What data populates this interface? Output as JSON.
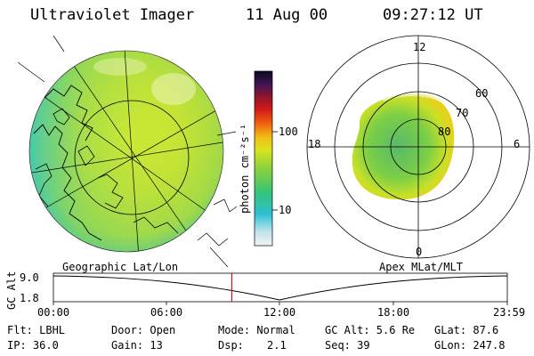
{
  "header": {
    "instrument": "Ultraviolet Imager",
    "date": "11 Aug 00",
    "time": "09:27:12 UT"
  },
  "colorbar": {
    "unit_label": "photon cm⁻²s⁻¹",
    "ticks": [
      "100",
      "10"
    ]
  },
  "polar_plot": {
    "mlt_labels": [
      "12",
      "18",
      "6",
      "0"
    ],
    "mlat_labels": [
      "60",
      "70",
      "80"
    ]
  },
  "altitude_strip": {
    "left_label": "Geographic Lat/Lon",
    "right_label": "Apex MLat/MLT",
    "axis_label": "GC Alt",
    "y_ticks": [
      "9.0",
      "1.8"
    ],
    "time_ticks": [
      "00:00",
      "06:00",
      "12:00",
      "18:00",
      "23:59"
    ],
    "current_time_fraction": 0.393
  },
  "info": {
    "flt": "Flt: LBHL",
    "ip": "IP: 36.0",
    "door": "Door: Open",
    "gain": "Gain: 13",
    "mode": "Mode: Normal",
    "dsp_label": "Dsp:",
    "dsp_value": "2.1",
    "gcalt": "GC Alt: 5.6 Re",
    "seq": "Seq: 39",
    "glat": "GLat:  87.6",
    "glon": "GLon: 247.8"
  }
}
